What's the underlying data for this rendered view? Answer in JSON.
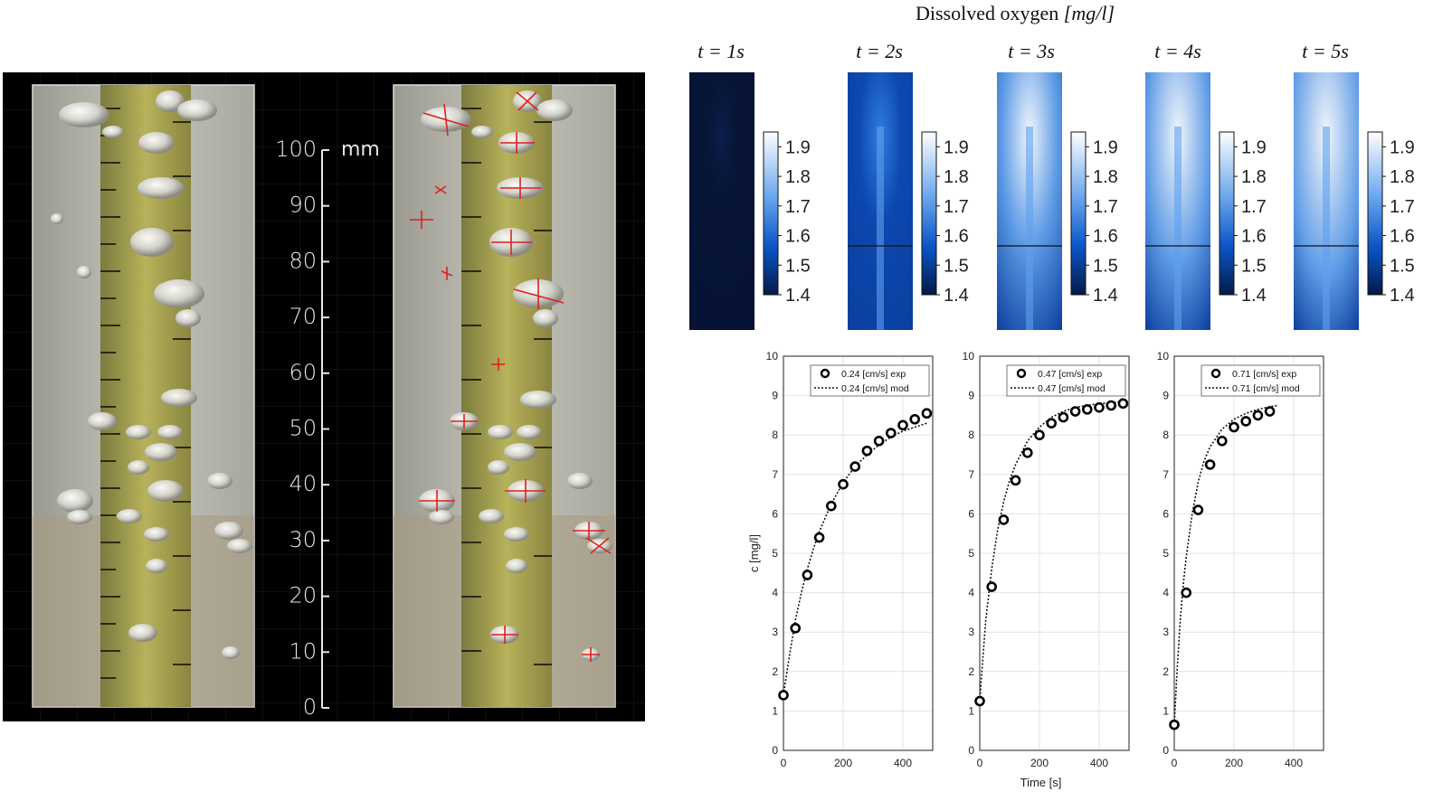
{
  "figure_title": "Dissolved oxygen [mg/l]",
  "figure_title_main": "Dissolved oxygen ",
  "figure_title_unit": "[mg/l]",
  "scale_bar": {
    "unit": "mm",
    "ticks": [
      "100",
      "90",
      "80",
      "70",
      "60",
      "50",
      "40",
      "30",
      "20",
      "10",
      "0"
    ]
  },
  "contours": {
    "titles": [
      "t = 1s",
      "t = 2s",
      "t = 3s",
      "t = 4s",
      "t = 5s"
    ],
    "colorbar_ticks": [
      "1.9",
      "1.8",
      "1.7",
      "1.6",
      "1.5",
      "1.4"
    ],
    "colorbar_range": [
      1.4,
      1.95
    ],
    "intensity": [
      0.0,
      0.35,
      0.65,
      0.85,
      1.0
    ],
    "colors": {
      "low": "#07143a",
      "high": "#f4f7fc",
      "mid": "#1f6fd8"
    }
  },
  "chart_data": [
    {
      "type": "scatter",
      "ylabel": "c [mg/l]",
      "xlabel": "",
      "xlim": [
        0,
        500
      ],
      "ylim": [
        0,
        10
      ],
      "xticks": [
        "0",
        "200",
        "400"
      ],
      "yticks": [
        "0",
        "1",
        "2",
        "3",
        "4",
        "5",
        "6",
        "7",
        "8",
        "9",
        "10"
      ],
      "grid": true,
      "legend_placement": "top-right",
      "series": [
        {
          "name": "0.24 [cm/s] exp",
          "style": "markers",
          "x": [
            0,
            40,
            80,
            120,
            160,
            200,
            240,
            280,
            320,
            360,
            400,
            440,
            480
          ],
          "y": [
            1.4,
            3.1,
            4.45,
            5.4,
            6.2,
            6.75,
            7.2,
            7.6,
            7.85,
            8.05,
            8.25,
            8.4,
            8.55
          ]
        },
        {
          "name": "0.24 [cm/s] mod",
          "style": "dotted",
          "x": [
            0,
            20,
            40,
            60,
            80,
            100,
            120,
            160,
            200,
            240,
            280,
            320,
            360,
            400,
            440,
            480
          ],
          "y": [
            1.4,
            2.4,
            3.3,
            4.0,
            4.6,
            5.1,
            5.55,
            6.25,
            6.8,
            7.2,
            7.5,
            7.75,
            7.95,
            8.1,
            8.2,
            8.3
          ]
        }
      ]
    },
    {
      "type": "scatter",
      "ylabel": "",
      "xlabel": "Time [s]",
      "xlim": [
        0,
        500
      ],
      "ylim": [
        0,
        10
      ],
      "xticks": [
        "0",
        "200",
        "400"
      ],
      "yticks": [
        "0",
        "1",
        "2",
        "3",
        "4",
        "5",
        "6",
        "7",
        "8",
        "9",
        "10"
      ],
      "grid": true,
      "legend_placement": "top-right",
      "series": [
        {
          "name": "0.47 [cm/s] exp",
          "style": "markers",
          "x": [
            0,
            40,
            80,
            120,
            160,
            200,
            240,
            280,
            320,
            360,
            400,
            440,
            480
          ],
          "y": [
            1.25,
            4.15,
            5.85,
            6.85,
            7.55,
            8.0,
            8.3,
            8.45,
            8.6,
            8.65,
            8.7,
            8.75,
            8.8
          ]
        },
        {
          "name": "0.47 [cm/s] mod",
          "style": "dotted",
          "x": [
            0,
            10,
            20,
            40,
            60,
            80,
            100,
            120,
            160,
            200,
            240,
            280,
            320,
            360,
            400,
            440,
            480
          ],
          "y": [
            1.25,
            2.3,
            3.3,
            4.6,
            5.6,
            6.3,
            6.85,
            7.25,
            7.85,
            8.2,
            8.45,
            8.6,
            8.7,
            8.75,
            8.8,
            8.82,
            8.85
          ]
        }
      ]
    },
    {
      "type": "scatter",
      "ylabel": "",
      "xlabel": "",
      "xlim": [
        0,
        500
      ],
      "ylim": [
        0,
        10
      ],
      "xticks": [
        "0",
        "200",
        "400"
      ],
      "yticks": [
        "0",
        "1",
        "2",
        "3",
        "4",
        "5",
        "6",
        "7",
        "8",
        "9",
        "10"
      ],
      "grid": true,
      "legend_placement": "top-right",
      "series": [
        {
          "name": "0.71 [cm/s] exp",
          "style": "markers",
          "x": [
            0,
            40,
            80,
            120,
            160,
            200,
            240,
            280,
            320
          ],
          "y": [
            0.65,
            4.0,
            6.1,
            7.25,
            7.85,
            8.2,
            8.35,
            8.5,
            8.6
          ]
        },
        {
          "name": "0.71 [cm/s] mod",
          "style": "dotted",
          "x": [
            0,
            10,
            20,
            30,
            40,
            60,
            80,
            100,
            120,
            160,
            200,
            240,
            280,
            320,
            350
          ],
          "y": [
            0.65,
            2.1,
            3.3,
            4.2,
            4.9,
            6.0,
            6.8,
            7.35,
            7.7,
            8.15,
            8.4,
            8.55,
            8.65,
            8.72,
            8.75
          ]
        }
      ]
    }
  ]
}
